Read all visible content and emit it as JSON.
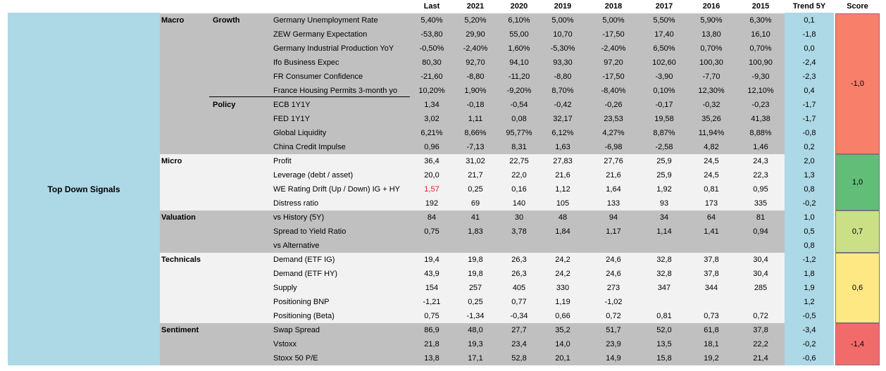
{
  "headers": {
    "last": "Last",
    "y2021": "2021",
    "y2020": "2020",
    "y2019": "2019",
    "y2018": "2018",
    "y2017": "2017",
    "y2016": "2016",
    "y2015": "2015",
    "trend": "Trend 5Y",
    "score": "Score"
  },
  "title": "Top Down Signals",
  "rows": [
    {
      "cat": "Macro",
      "sub": "Growth",
      "name": "Germany Unemployment Rate",
      "vals": [
        "5,40%",
        "5,20%",
        "6,10%",
        "5,00%",
        "5,00%",
        "5,50%",
        "5,90%",
        "6,30%"
      ],
      "trend": "0,1",
      "bg": "gray"
    },
    {
      "cat": "",
      "sub": "",
      "name": "ZEW Germany Expectation",
      "vals": [
        "-53,80",
        "29,90",
        "55,00",
        "10,70",
        "-17,50",
        "17,40",
        "13,80",
        "16,10"
      ],
      "trend": "-1,8",
      "bg": "gray"
    },
    {
      "cat": "",
      "sub": "",
      "name": "Germany Industrial Production YoY",
      "vals": [
        "-0,50%",
        "-2,40%",
        "1,60%",
        "-5,30%",
        "-2,40%",
        "6,50%",
        "0,70%",
        "0,70%"
      ],
      "trend": "0,0",
      "bg": "gray"
    },
    {
      "cat": "",
      "sub": "",
      "name": "Ifo Business Expec",
      "vals": [
        "80,30",
        "92,70",
        "94,10",
        "93,30",
        "97,20",
        "102,60",
        "100,30",
        "100,90"
      ],
      "trend": "-2,4",
      "bg": "gray"
    },
    {
      "cat": "",
      "sub": "",
      "name": "FR Consumer Confidence",
      "vals": [
        "-21,60",
        "-8,80",
        "-11,20",
        "-8,80",
        "-17,50",
        "-3,90",
        "-7,70",
        "-9,30"
      ],
      "trend": "-2,3",
      "bg": "gray"
    },
    {
      "cat": "",
      "sub": "",
      "name": "France Housing Permits 3-month yo",
      "vals": [
        "10,20%",
        "1,90%",
        "-9,20%",
        "8,70%",
        "-8,40%",
        "0,10%",
        "12,30%",
        "12,10%"
      ],
      "trend": "0,4",
      "bg": "gray"
    },
    {
      "cat": "",
      "sub": "Policy",
      "name": "ECB 1Y1Y",
      "vals": [
        "1,34",
        "-0,18",
        "-0,54",
        "-0,42",
        "-0,26",
        "-0,17",
        "-0,32",
        "-0,23"
      ],
      "trend": "-1,7",
      "bg": "gray"
    },
    {
      "cat": "",
      "sub": "",
      "name": "FED 1Y1Y",
      "vals": [
        "3,02",
        "1,11",
        "0,08",
        "32,17",
        "23,53",
        "19,58",
        "35,26",
        "41,38"
      ],
      "trend": "-1,7",
      "bg": "gray"
    },
    {
      "cat": "",
      "sub": "",
      "name": "Global Liquidity",
      "vals": [
        "6,21%",
        "8,66%",
        "95,77%",
        "6,12%",
        "4,27%",
        "8,87%",
        "11,94%",
        "8,88%"
      ],
      "trend": "-0,8",
      "bg": "gray"
    },
    {
      "cat": "",
      "sub": "",
      "name": "China Credit Impulse",
      "vals": [
        "0,96",
        "-7,13",
        "8,31",
        "1,63",
        "-6,98",
        "-2,58",
        "4,82",
        "1,46"
      ],
      "trend": "0,2",
      "bg": "gray"
    },
    {
      "cat": "Micro",
      "sub": "",
      "name": "Profit",
      "vals": [
        "36,4",
        "31,02",
        "22,75",
        "27,83",
        "27,76",
        "25,9",
        "24,5",
        "24,3"
      ],
      "trend": "2,0",
      "bg": "light"
    },
    {
      "cat": "",
      "sub": "",
      "name": "Leverage (debt / asset)",
      "vals": [
        "20,0",
        "21,7",
        "22,0",
        "21,6",
        "21,6",
        "25,9",
        "24,5",
        "22,3"
      ],
      "trend": "1,3",
      "bg": "light"
    },
    {
      "cat": "",
      "sub": "",
      "name": "WE Rating Drift (Up / Down) IG + HY",
      "vals": [
        "1,57",
        "0,25",
        "0,16",
        "1,12",
        "1,64",
        "1,92",
        "0,81",
        "0,95"
      ],
      "trend": "0,8",
      "bg": "light",
      "redFirst": true
    },
    {
      "cat": "",
      "sub": "",
      "name": "Distress ratio",
      "vals": [
        "192",
        "69",
        "140",
        "105",
        "133",
        "93",
        "173",
        "335"
      ],
      "trend": "-0,2",
      "bg": "light"
    },
    {
      "cat": "Valuation",
      "sub": "",
      "name": "vs History (5Y)",
      "vals": [
        "84",
        "41",
        "30",
        "48",
        "94",
        "34",
        "64",
        "81"
      ],
      "trend": "1,0",
      "bg": "gray"
    },
    {
      "cat": "",
      "sub": "",
      "name": "Spread to Yield Ratio",
      "vals": [
        "0,75",
        "1,83",
        "3,78",
        "1,84",
        "1,17",
        "1,14",
        "1,41",
        "0,94"
      ],
      "trend": "0,5",
      "bg": "gray"
    },
    {
      "cat": "",
      "sub": "",
      "name": "vs Alternative",
      "vals": [
        "",
        "",
        "",
        "",
        "",
        "",
        "",
        ""
      ],
      "trend": "0,8",
      "bg": "gray"
    },
    {
      "cat": "Technicals",
      "sub": "",
      "name": "Demand (ETF IG)",
      "vals": [
        "19,4",
        "19,8",
        "26,3",
        "24,2",
        "24,6",
        "32,8",
        "37,8",
        "30,4"
      ],
      "trend": "-1,2",
      "bg": "light"
    },
    {
      "cat": "",
      "sub": "",
      "name": "Demand (ETF HY)",
      "vals": [
        "43,9",
        "19,8",
        "26,3",
        "24,2",
        "24,6",
        "32,8",
        "37,8",
        "30,4"
      ],
      "trend": "1,8",
      "bg": "light"
    },
    {
      "cat": "",
      "sub": "",
      "name": "Supply",
      "vals": [
        "154",
        "257",
        "405",
        "330",
        "273",
        "347",
        "344",
        "285"
      ],
      "trend": "1,9",
      "bg": "light"
    },
    {
      "cat": "",
      "sub": "",
      "name": "Positioning BNP",
      "vals": [
        "-1,21",
        "0,25",
        "0,77",
        "1,19",
        "-1,02",
        "",
        "",
        ""
      ],
      "trend": "1,2",
      "bg": "light"
    },
    {
      "cat": "",
      "sub": "",
      "name": "Positioning (Beta)",
      "vals": [
        "0,75",
        "-1,34",
        "-0,34",
        "0,66",
        "0,72",
        "0,81",
        "0,73",
        "0,72"
      ],
      "trend": "-0,5",
      "bg": "light"
    },
    {
      "cat": "Sentiment",
      "sub": "",
      "name": "Swap Spread",
      "vals": [
        "86,9",
        "48,0",
        "27,7",
        "35,2",
        "51,7",
        "52,0",
        "61,8",
        "37,8"
      ],
      "trend": "-3,4",
      "bg": "gray"
    },
    {
      "cat": "",
      "sub": "",
      "name": "Vstoxx",
      "vals": [
        "21,8",
        "19,3",
        "23,4",
        "14,0",
        "23,9",
        "13,5",
        "18,1",
        "22,2"
      ],
      "trend": "-0,2",
      "bg": "gray"
    },
    {
      "cat": "",
      "sub": "",
      "name": "Stoxx 50 P/E",
      "vals": [
        "13,8",
        "17,1",
        "52,8",
        "20,1",
        "14,9",
        "15,8",
        "19,2",
        "21,4"
      ],
      "trend": "-0,6",
      "bg": "gray"
    }
  ],
  "scores": [
    {
      "label": "-1,0",
      "color": "#f8806b",
      "startRow": 0,
      "rowCount": 10
    },
    {
      "label": "1,0",
      "color": "#62bd78",
      "startRow": 10,
      "rowCount": 4
    },
    {
      "label": "0,7",
      "color": "#cbdf86",
      "startRow": 14,
      "rowCount": 3
    },
    {
      "label": "0,6",
      "color": "#fde883",
      "startRow": 17,
      "rowCount": 5
    },
    {
      "label": "-1,4",
      "color": "#f26b6b",
      "startRow": 22,
      "rowCount": 3
    }
  ]
}
